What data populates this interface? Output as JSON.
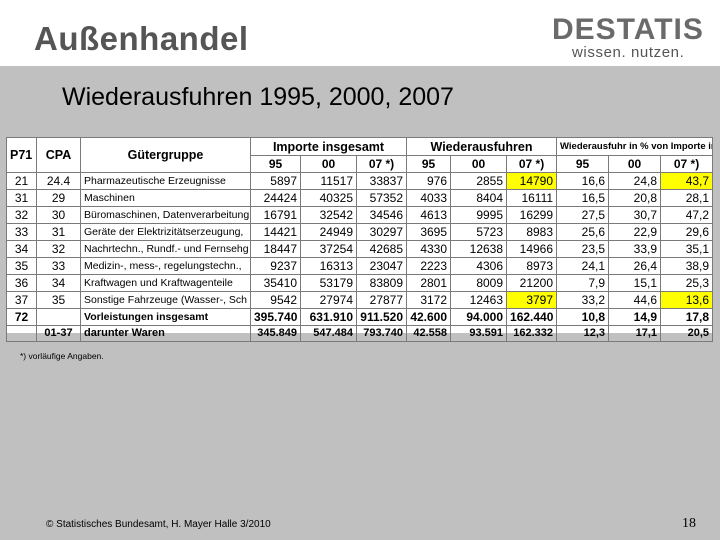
{
  "header": {
    "title": "Außenhandel"
  },
  "logo": {
    "word": "DESTATIS",
    "tagline": "wissen. nutzen."
  },
  "subtitle": "Wiederausfuhren 1995, 2000, 2007",
  "table": {
    "headers": {
      "p71": "P71",
      "cpa": "CPA",
      "gueter": "Gütergruppe",
      "importe": "Importe insgesamt",
      "wieder": "Wiederausfuhren",
      "anteil": "Wiederausfuhr in % von Importe ins"
    },
    "years": [
      "95",
      "00",
      "07 *)",
      "95",
      "00",
      "07 *)",
      "95",
      "00",
      "07 *)"
    ],
    "rows": [
      {
        "p71": "21",
        "cpa": "24.4",
        "name": "Pharmazeutische Erzeugnisse",
        "imp95": "5897",
        "imp00": "11517",
        "imp07": "33837",
        "wa95": "976",
        "wa00": "2855",
        "wa07": "14790",
        "pc95": "16,6",
        "pc00": "24,8",
        "pc07": "43,7"
      },
      {
        "p71": "31",
        "cpa": "29",
        "name": "Maschinen",
        "imp95": "24424",
        "imp00": "40325",
        "imp07": "57352",
        "wa95": "4033",
        "wa00": "8404",
        "wa07": "16111",
        "pc95": "16,5",
        "pc00": "20,8",
        "pc07": "28,1"
      },
      {
        "p71": "32",
        "cpa": "30",
        "name": "Büromaschinen, Datenverarbeitung",
        "imp95": "16791",
        "imp00": "32542",
        "imp07": "34546",
        "wa95": "4613",
        "wa00": "9995",
        "wa07": "16299",
        "pc95": "27,5",
        "pc00": "30,7",
        "pc07": "47,2"
      },
      {
        "p71": "33",
        "cpa": "31",
        "name": "Geräte der Elektrizitätserzeugung,",
        "imp95": "14421",
        "imp00": "24949",
        "imp07": "30297",
        "wa95": "3695",
        "wa00": "5723",
        "wa07": "8983",
        "pc95": "25,6",
        "pc00": "22,9",
        "pc07": "29,6"
      },
      {
        "p71": "34",
        "cpa": "32",
        "name": "Nachrtechn., Rundf.- und Fernsehg",
        "imp95": "18447",
        "imp00": "37254",
        "imp07": "42685",
        "wa95": "4330",
        "wa00": "12638",
        "wa07": "14966",
        "pc95": "23,5",
        "pc00": "33,9",
        "pc07": "35,1"
      },
      {
        "p71": "35",
        "cpa": "33",
        "name": "Medizin-, mess-, regelungstechn.,",
        "imp95": "9237",
        "imp00": "16313",
        "imp07": "23047",
        "wa95": "2223",
        "wa00": "4306",
        "wa07": "8973",
        "pc95": "24,1",
        "pc00": "26,4",
        "pc07": "38,9"
      },
      {
        "p71": "36",
        "cpa": "34",
        "name": "Kraftwagen und Kraftwagenteile",
        "imp95": "35410",
        "imp00": "53179",
        "imp07": "83809",
        "wa95": "2801",
        "wa00": "8009",
        "wa07": "21200",
        "pc95": "7,9",
        "pc00": "15,1",
        "pc07": "25,3"
      },
      {
        "p71": "37",
        "cpa": "35",
        "name": "Sonstige Fahrzeuge (Wasser-, Sch",
        "imp95": "9542",
        "imp00": "27974",
        "imp07": "27877",
        "wa95": "3172",
        "wa00": "12463",
        "wa07": "3797",
        "pc95": "33,2",
        "pc00": "44,6",
        "pc07": "13,6"
      },
      {
        "p71": "72",
        "cpa": "",
        "name": "Vorleistungen insgesamt",
        "imp95": "395.740",
        "imp00": "631.910",
        "imp07": "911.520",
        "wa95": "42.600",
        "wa00": "94.000",
        "wa07": "162.440",
        "pc95": "10,8",
        "pc00": "14,9",
        "pc07": "17,8"
      }
    ],
    "summary": {
      "cpa": "01-37",
      "name": "darunter Waren",
      "imp95": "345.849",
      "imp00": "547.484",
      "imp07": "793.740",
      "wa95": "42.558",
      "wa00": "93.591",
      "wa07": "162.332",
      "pc95": "12,3",
      "pc00": "17,1",
      "pc07": "20,5"
    },
    "highlight_color": "#ffff00"
  },
  "footnote": "*) vorläufige Angaben.",
  "footer": {
    "copyright": "© Statistisches Bundesamt, H. Mayer Halle 3/2010",
    "page": "18"
  }
}
